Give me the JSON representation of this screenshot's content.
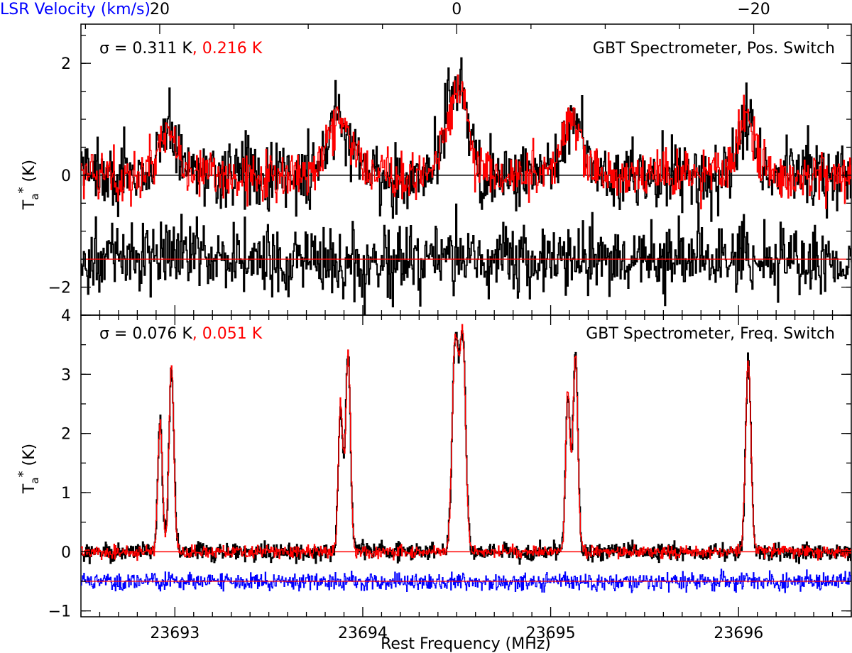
{
  "figure": {
    "top_axis_label": "LSR Velocity (km/s)",
    "top_axis_label_color": "#0000ff",
    "x_axis_label": "Rest Frequency (MHz)"
  },
  "chart_data": [
    {
      "type": "line",
      "title": "",
      "annotation_left": "σ = 0.311 K",
      "annotation_left_red": ", 0.216 K",
      "annotation_right": "GBT Spectrometer, Pos. Switch",
      "xlabel": "",
      "ylabel": "T_a* (K)",
      "xlim": [
        23692.5,
        23696.6
      ],
      "ylim": [
        -2.5,
        2.7
      ],
      "ytick_labels": [
        "−2",
        "0",
        "2"
      ],
      "ytick_values": [
        -2,
        0,
        2
      ],
      "top_axis": {
        "label": "LSR Velocity (km/s)",
        "tick_labels": [
          "20",
          "0",
          "−20"
        ],
        "tick_values": [
          20,
          0,
          -20
        ]
      },
      "grid": false,
      "noise_rms": [
        0.311,
        0.216
      ],
      "lines": [
        {
          "center": 23692.96,
          "peak": 0.85,
          "width": 0.05
        },
        {
          "center": 23693.87,
          "peak": 1.0,
          "width": 0.06
        },
        {
          "center": 23694.5,
          "peak": 1.6,
          "width": 0.055
        },
        {
          "center": 23695.11,
          "peak": 0.95,
          "width": 0.06
        },
        {
          "center": 23696.04,
          "peak": 1.0,
          "width": 0.05
        }
      ],
      "residual_offset": -1.5,
      "series_colors": [
        "#000000",
        "#ff0000"
      ],
      "baseline_color": "#000000",
      "residual_baseline_color": "#ff0000"
    },
    {
      "type": "line",
      "title": "",
      "annotation_left": "σ = 0.076 K",
      "annotation_left_red": ", 0.051 K",
      "annotation_right": "GBT Spectrometer, Freq. Switch",
      "xlabel": "Rest Frequency (MHz)",
      "ylabel": "T_a* (K)",
      "xlim": [
        23692.5,
        23696.6
      ],
      "ylim": [
        -1.1,
        4.0
      ],
      "ytick_labels": [
        "−1",
        "0",
        "1",
        "2",
        "3",
        "4"
      ],
      "ytick_values": [
        -1,
        0,
        1,
        2,
        3,
        4
      ],
      "xtick_labels": [
        "23693",
        "23694",
        "23695",
        "23696"
      ],
      "xtick_values": [
        23693,
        23694,
        23695,
        23696
      ],
      "grid": false,
      "noise_rms": [
        0.076,
        0.051
      ],
      "lines": [
        {
          "center": 23692.92,
          "peak": 2.2,
          "width": 0.012
        },
        {
          "center": 23692.98,
          "peak": 3.15,
          "width": 0.013
        },
        {
          "center": 23693.88,
          "peak": 2.45,
          "width": 0.012
        },
        {
          "center": 23693.92,
          "peak": 3.35,
          "width": 0.013
        },
        {
          "center": 23694.49,
          "peak": 3.55,
          "width": 0.016
        },
        {
          "center": 23694.53,
          "peak": 3.6,
          "width": 0.016
        },
        {
          "center": 23695.09,
          "peak": 2.7,
          "width": 0.012
        },
        {
          "center": 23695.13,
          "peak": 3.3,
          "width": 0.013
        },
        {
          "center": 23696.05,
          "peak": 3.28,
          "width": 0.014
        }
      ],
      "residual_offset": -0.5,
      "series_colors": [
        "#000000",
        "#ff0000"
      ],
      "residual_color": "#0000ff",
      "baseline_color": "#ff0000",
      "residual_baseline_color": "#ff0000"
    }
  ]
}
